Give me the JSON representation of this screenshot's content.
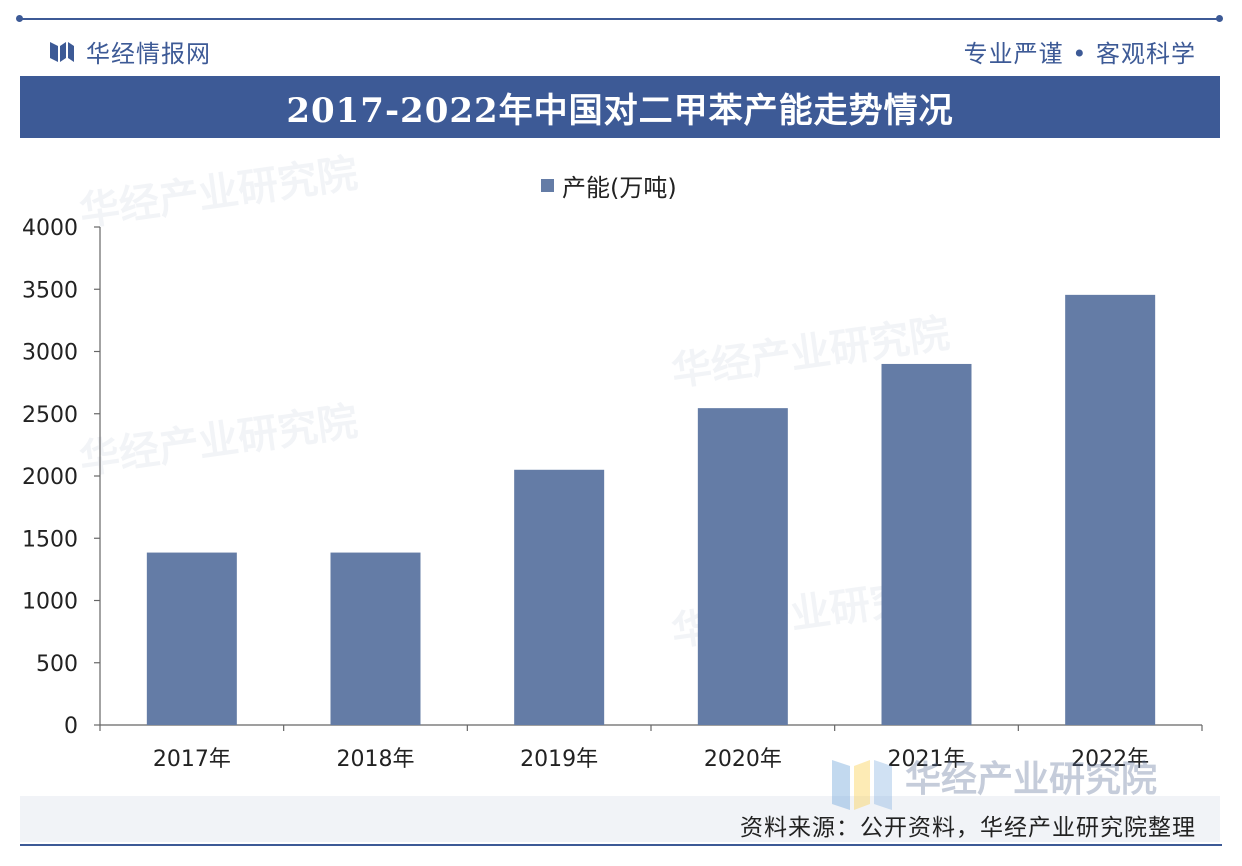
{
  "header": {
    "brand_name": "华经情报网",
    "slogan": "专业严谨 • 客观科学"
  },
  "title": "2017-2022年中国对二甲苯产能走势情况",
  "legend": {
    "label": "产能(万吨)"
  },
  "chart_data": {
    "type": "bar",
    "title": "2017-2022年中国对二甲苯产能走势情况",
    "categories": [
      "2017年",
      "2018年",
      "2019年",
      "2020年",
      "2021年",
      "2022年"
    ],
    "series": [
      {
        "name": "产能(万吨)",
        "values": [
          1385,
          1385,
          2050,
          2545,
          2900,
          3455
        ]
      }
    ],
    "ylim": [
      0,
      4000
    ],
    "yticks": [
      0,
      500,
      1000,
      1500,
      2000,
      2500,
      3000,
      3500,
      4000
    ],
    "xlabel": "",
    "ylabel": "",
    "grid": false,
    "legend_position": "top-center",
    "bar_color": "#647ca6"
  },
  "footer": {
    "source": "资料来源：公开资料，华经产业研究院整理"
  },
  "watermark": {
    "text": "华经产业研究院"
  }
}
